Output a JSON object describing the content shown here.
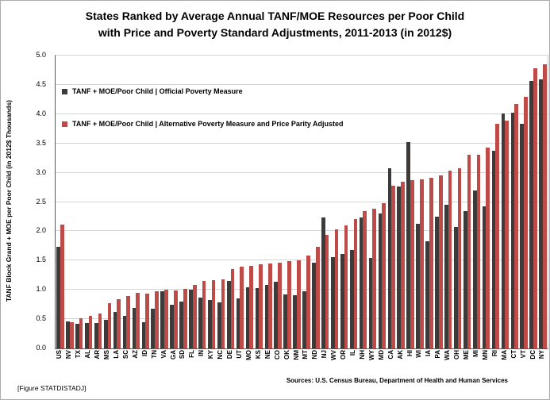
{
  "title_lines": {
    "line1": "States Ranked by Average Annual TANF/MOE Resources per Poor Child",
    "line2": "with Price and Poverty Standard Adjustments, 2011-2013 (in 2012$)"
  },
  "footer": {
    "figure_tag": "[Figure STATDISTADJ]",
    "sources": "Sources: U.S. Census Bureau, Department of Health and Human Services"
  },
  "colors": {
    "official_bar": "#3d3a3a",
    "alternative_bar": "#bf4b48",
    "gridline": "#d4d4d4",
    "axis": "#595959"
  },
  "chart_data": {
    "type": "bar",
    "title": "States Ranked by Average Annual TANF/MOE Resources per Poor Child with Price and Poverty Standard Adjustments, 2011-2013 (in 2012$)",
    "xlabel": "",
    "ylabel": "TANF Block Grand  + MOE per Poor Child (in 2012$ Thousands)",
    "ylim": [
      0,
      5
    ],
    "yticks": [
      "0.0",
      "0.5",
      "1.0",
      "1.5",
      "2.0",
      "2.5",
      "3.0",
      "3.5",
      "4.0",
      "4.5",
      "5.0"
    ],
    "grid": true,
    "legend_position": "top-left-inside",
    "categories": [
      "US",
      "NV",
      "TX",
      "AL",
      "AR",
      "MS",
      "LA",
      "SC",
      "AZ",
      "ID",
      "TN",
      "VA",
      "GA",
      "SD",
      "FL",
      "IN",
      "KY",
      "NC",
      "DE",
      "UT",
      "MO",
      "KS",
      "NE",
      "CO",
      "OK",
      "NM",
      "MT",
      "ND",
      "NJ",
      "WV",
      "OR",
      "IL",
      "NH",
      "WY",
      "MD",
      "CA",
      "AK",
      "HI",
      "WI",
      "IA",
      "PA",
      "WA",
      "OH",
      "ME",
      "MI",
      "MN",
      "RI",
      "MA",
      "CT",
      "VT",
      "DC",
      "NY"
    ],
    "series": [
      {
        "name": "TANF + MOE/Poor Child | Official Poverty Measure",
        "color": "#3d3a3a",
        "values": [
          1.74,
          0.46,
          0.42,
          0.44,
          0.43,
          0.49,
          0.62,
          0.56,
          0.69,
          0.45,
          0.68,
          0.97,
          0.74,
          0.8,
          1.0,
          0.87,
          0.83,
          0.78,
          1.15,
          0.85,
          1.05,
          1.03,
          1.09,
          1.14,
          0.92,
          0.91,
          0.98,
          1.46,
          2.24,
          1.56,
          1.61,
          1.68,
          2.23,
          1.54,
          2.3,
          3.07,
          2.77,
          3.53,
          2.13,
          1.83,
          2.25,
          2.45,
          2.07,
          2.35,
          2.7,
          2.42,
          3.37,
          4.01,
          4.03,
          3.84,
          4.56,
          4.59
        ]
      },
      {
        "name": "TANF + MOE/Poor Child | Alternative Poverty Measure and Price Parity Adjusted",
        "color": "#bf4b48",
        "values": [
          2.12,
          0.45,
          0.51,
          0.56,
          0.6,
          0.77,
          0.84,
          0.9,
          0.95,
          0.94,
          0.98,
          1.0,
          0.99,
          1.01,
          1.08,
          1.15,
          1.17,
          1.18,
          1.35,
          1.39,
          1.41,
          1.43,
          1.45,
          1.47,
          1.49,
          1.51,
          1.58,
          1.73,
          1.94,
          2.03,
          2.1,
          2.21,
          2.35,
          2.38,
          2.48,
          2.78,
          2.85,
          2.87,
          2.88,
          2.92,
          2.95,
          3.04,
          3.07,
          3.3,
          3.31,
          3.43,
          3.83,
          3.89,
          4.17,
          4.3,
          4.78,
          4.85
        ]
      }
    ]
  }
}
